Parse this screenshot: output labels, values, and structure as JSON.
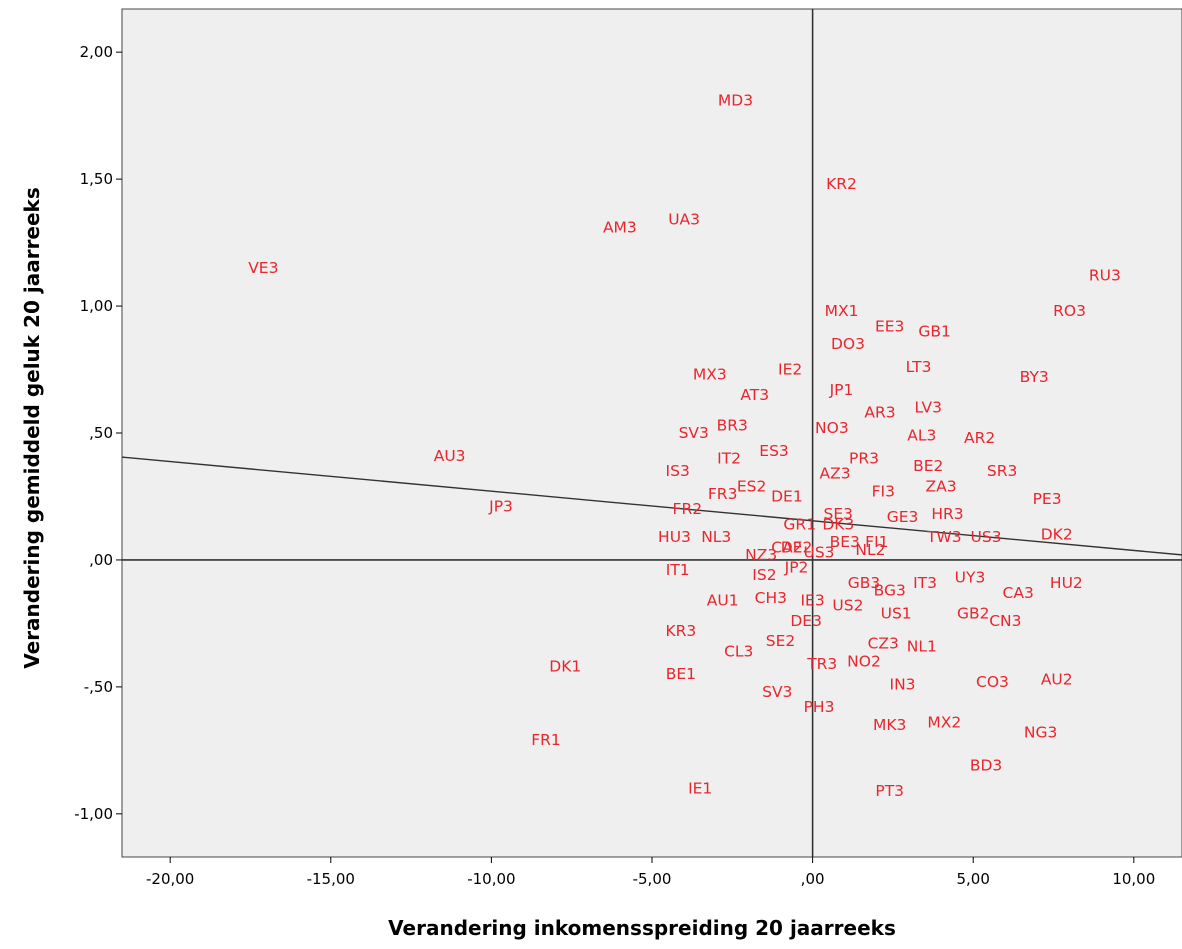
{
  "chart_data": {
    "type": "scatter",
    "title": "",
    "xlabel": "Verandering inkomensspreiding 20 jaarreeks",
    "ylabel": "Verandering gemiddeld geluk 20 jaarreeks",
    "xlim": [
      -21.5,
      11.5
    ],
    "ylim": [
      -1.17,
      2.17
    ],
    "x_ticks": [
      -20,
      -15,
      -10,
      -5,
      0,
      5,
      10
    ],
    "y_ticks": [
      -1,
      -0.5,
      0,
      0.5,
      1,
      1.5,
      2
    ],
    "x_tick_labels": [
      "-20,00",
      "-15,00",
      "-10,00",
      "-5,00",
      ",00",
      "5,00",
      "10,00"
    ],
    "y_tick_labels": [
      "-1,00",
      "-,50",
      ",00",
      ",50",
      "1,00",
      "1,50",
      "2,00"
    ],
    "reference_lines": {
      "x": 0,
      "y": 0
    },
    "fit_line": {
      "x": [
        -21.5,
        11.5
      ],
      "y": [
        0.405,
        0.02
      ]
    },
    "colors": {
      "background": "#efefef",
      "points": "#e8262d",
      "lines": "#000000"
    },
    "grid": false,
    "points": [
      {
        "label": "MD3",
        "x": -2.4,
        "y": 1.81
      },
      {
        "label": "KR2",
        "x": 0.9,
        "y": 1.48
      },
      {
        "label": "AM3",
        "x": -6.0,
        "y": 1.31
      },
      {
        "label": "UA3",
        "x": -4.0,
        "y": 1.34
      },
      {
        "label": "VE3",
        "x": -17.1,
        "y": 1.15
      },
      {
        "label": "RU3",
        "x": 9.1,
        "y": 1.12
      },
      {
        "label": "RO3",
        "x": 8.0,
        "y": 0.98
      },
      {
        "label": "MX1",
        "x": 0.9,
        "y": 0.98
      },
      {
        "label": "EE3",
        "x": 2.4,
        "y": 0.92
      },
      {
        "label": "GB1",
        "x": 3.8,
        "y": 0.9
      },
      {
        "label": "DO3",
        "x": 1.1,
        "y": 0.85
      },
      {
        "label": "LT3",
        "x": 3.3,
        "y": 0.76
      },
      {
        "label": "BY3",
        "x": 6.9,
        "y": 0.72
      },
      {
        "label": "MX3",
        "x": -3.2,
        "y": 0.73
      },
      {
        "label": "IE2",
        "x": -0.7,
        "y": 0.75
      },
      {
        "label": "JP1",
        "x": 0.9,
        "y": 0.67
      },
      {
        "label": "AT3",
        "x": -1.8,
        "y": 0.65
      },
      {
        "label": "LV3",
        "x": 3.6,
        "y": 0.6
      },
      {
        "label": "AR3",
        "x": 2.1,
        "y": 0.58
      },
      {
        "label": "BR3",
        "x": -2.5,
        "y": 0.53
      },
      {
        "label": "NO3",
        "x": 0.6,
        "y": 0.52
      },
      {
        "label": "SV3",
        "x": -3.7,
        "y": 0.5
      },
      {
        "label": "AL3",
        "x": 3.4,
        "y": 0.49
      },
      {
        "label": "AR2",
        "x": 5.2,
        "y": 0.48
      },
      {
        "label": "ES3",
        "x": -1.2,
        "y": 0.43
      },
      {
        "label": "AU3",
        "x": -11.3,
        "y": 0.41
      },
      {
        "label": "IT2",
        "x": -2.6,
        "y": 0.4
      },
      {
        "label": "PR3",
        "x": 1.6,
        "y": 0.4
      },
      {
        "label": "IS3",
        "x": -4.2,
        "y": 0.35
      },
      {
        "label": "BE2",
        "x": 3.6,
        "y": 0.37
      },
      {
        "label": "SR3",
        "x": 5.9,
        "y": 0.35
      },
      {
        "label": "AZ3",
        "x": 0.7,
        "y": 0.34
      },
      {
        "label": "ES2",
        "x": -1.9,
        "y": 0.29
      },
      {
        "label": "ZA3",
        "x": 4.0,
        "y": 0.29
      },
      {
        "label": "FI3",
        "x": 2.2,
        "y": 0.27
      },
      {
        "label": "FR3",
        "x": -2.8,
        "y": 0.26
      },
      {
        "label": "DE1",
        "x": -0.8,
        "y": 0.25
      },
      {
        "label": "PE3",
        "x": 7.3,
        "y": 0.24
      },
      {
        "label": "FR2",
        "x": -3.9,
        "y": 0.2
      },
      {
        "label": "JP3",
        "x": -9.7,
        "y": 0.21
      },
      {
        "label": "HR3",
        "x": 4.2,
        "y": 0.18
      },
      {
        "label": "SE3",
        "x": 0.8,
        "y": 0.18
      },
      {
        "label": "GE3",
        "x": 2.8,
        "y": 0.17
      },
      {
        "label": "GR1",
        "x": -0.4,
        "y": 0.14
      },
      {
        "label": "DK3",
        "x": 0.8,
        "y": 0.14
      },
      {
        "label": "DK2",
        "x": 7.6,
        "y": 0.1
      },
      {
        "label": "US3",
        "x": 5.4,
        "y": 0.09
      },
      {
        "label": "TW3",
        "x": 4.1,
        "y": 0.09
      },
      {
        "label": "HU3",
        "x": -4.3,
        "y": 0.09
      },
      {
        "label": "NL3",
        "x": -3.0,
        "y": 0.09
      },
      {
        "label": "BE3",
        "x": 1.0,
        "y": 0.07
      },
      {
        "label": "FI1",
        "x": 2.0,
        "y": 0.07
      },
      {
        "label": "NL2",
        "x": 1.8,
        "y": 0.04
      },
      {
        "label": "CA2",
        "x": -0.8,
        "y": 0.05
      },
      {
        "label": "DE2",
        "x": -0.5,
        "y": 0.05
      },
      {
        "label": "NZ3",
        "x": -1.6,
        "y": 0.02
      },
      {
        "label": "US3",
        "x": 0.2,
        "y": 0.03
      },
      {
        "label": "JP2",
        "x": -0.5,
        "y": -0.03
      },
      {
        "label": "IT1",
        "x": -4.2,
        "y": -0.04
      },
      {
        "label": "IS2",
        "x": -1.5,
        "y": -0.06
      },
      {
        "label": "UY3",
        "x": 4.9,
        "y": -0.07
      },
      {
        "label": "HU2",
        "x": 7.9,
        "y": -0.09
      },
      {
        "label": "GB3",
        "x": 1.6,
        "y": -0.09
      },
      {
        "label": "IT3",
        "x": 3.5,
        "y": -0.09
      },
      {
        "label": "BG3",
        "x": 2.4,
        "y": -0.12
      },
      {
        "label": "CA3",
        "x": 6.4,
        "y": -0.13
      },
      {
        "label": "AU1",
        "x": -2.8,
        "y": -0.16
      },
      {
        "label": "CH3",
        "x": -1.3,
        "y": -0.15
      },
      {
        "label": "IE3",
        "x": 0.0,
        "y": -0.16
      },
      {
        "label": "US2",
        "x": 1.1,
        "y": -0.18
      },
      {
        "label": "US1",
        "x": 2.6,
        "y": -0.21
      },
      {
        "label": "GB2",
        "x": 5.0,
        "y": -0.21
      },
      {
        "label": "CN3",
        "x": 6.0,
        "y": -0.24
      },
      {
        "label": "DE3",
        "x": -0.2,
        "y": -0.24
      },
      {
        "label": "KR3",
        "x": -4.1,
        "y": -0.28
      },
      {
        "label": "SE2",
        "x": -1.0,
        "y": -0.32
      },
      {
        "label": "CZ3",
        "x": 2.2,
        "y": -0.33
      },
      {
        "label": "NL1",
        "x": 3.4,
        "y": -0.34
      },
      {
        "label": "CL3",
        "x": -2.3,
        "y": -0.36
      },
      {
        "label": "TR3",
        "x": 0.3,
        "y": -0.41
      },
      {
        "label": "NO2",
        "x": 1.6,
        "y": -0.4
      },
      {
        "label": "DK1",
        "x": -7.7,
        "y": -0.42
      },
      {
        "label": "BE1",
        "x": -4.1,
        "y": -0.45
      },
      {
        "label": "CO3",
        "x": 5.6,
        "y": -0.48
      },
      {
        "label": "AU2",
        "x": 7.6,
        "y": -0.47
      },
      {
        "label": "IN3",
        "x": 2.8,
        "y": -0.49
      },
      {
        "label": "SV3",
        "x": -1.1,
        "y": -0.52
      },
      {
        "label": "PH3",
        "x": 0.2,
        "y": -0.58
      },
      {
        "label": "MK3",
        "x": 2.4,
        "y": -0.65
      },
      {
        "label": "MX2",
        "x": 4.1,
        "y": -0.64
      },
      {
        "label": "NG3",
        "x": 7.1,
        "y": -0.68
      },
      {
        "label": "FR1",
        "x": -8.3,
        "y": -0.71
      },
      {
        "label": "BD3",
        "x": 5.4,
        "y": -0.81
      },
      {
        "label": "IE1",
        "x": -3.5,
        "y": -0.9
      },
      {
        "label": "PT3",
        "x": 2.4,
        "y": -0.91
      }
    ]
  }
}
